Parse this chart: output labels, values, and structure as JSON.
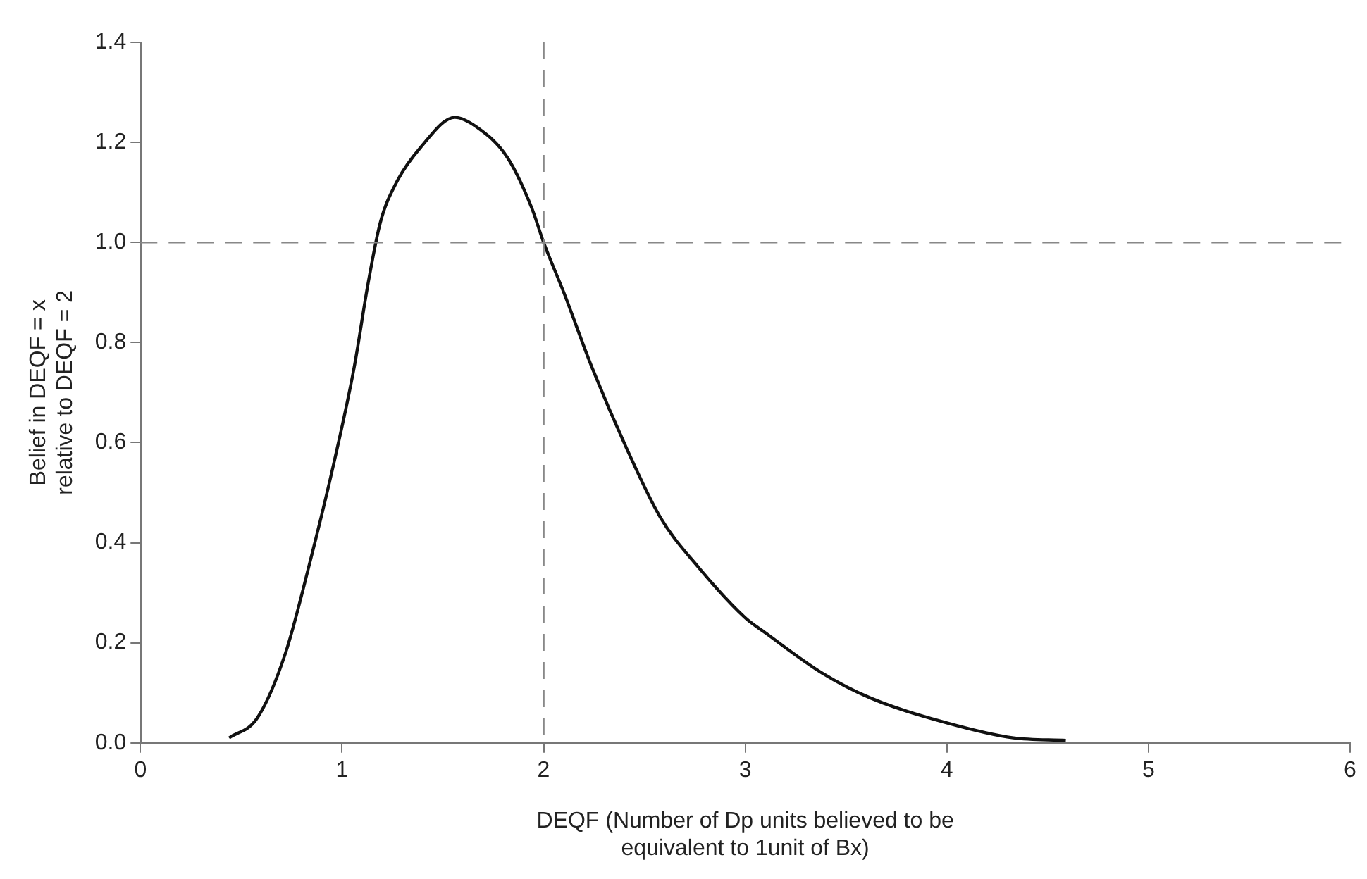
{
  "chart_data": {
    "type": "line",
    "xlabel": "DEQF (Number of Dp units believed to be\nequivalent to 1unit of Bx)",
    "ylabel": "Belief in DEQF = x\nrelative to DEQF = 2",
    "xlim": [
      0,
      6
    ],
    "xticks": [
      0,
      1,
      2,
      3,
      4,
      5,
      6
    ],
    "ylim": [
      0,
      1.4
    ],
    "yticks": [
      {
        "value": 0,
        "label": "0.0"
      },
      {
        "value": 0.2,
        "label": "0.2"
      },
      {
        "value": 0.4,
        "label": "0.4"
      },
      {
        "value": 0.6,
        "label": "0.6"
      },
      {
        "value": 0.8,
        "label": "0.8"
      },
      {
        "value": 1,
        "label": "1.0"
      },
      {
        "value": 1.2,
        "label": "1.2"
      },
      {
        "value": 1.4,
        "label": "1.4"
      }
    ],
    "marker": "none",
    "line_style": "solid",
    "series": [
      {
        "color": "#111111",
        "x": [
          0.44,
          0.58,
          0.72,
          0.84,
          0.96,
          1.06,
          1.13,
          1.19,
          1.27,
          1.39,
          1.56,
          1.67,
          1.82,
          1.94,
          2.0,
          2.1,
          2.24,
          2.41,
          2.58,
          2.77,
          3.0,
          3.1,
          3.38,
          3.62,
          4.0,
          4.33,
          4.59
        ],
        "values": [
          0.01,
          0.05,
          0.18,
          0.36,
          0.56,
          0.75,
          0.92,
          1.04,
          1.12,
          1.19,
          1.25,
          1.23,
          1.17,
          1.07,
          1.0,
          0.9,
          0.75,
          0.59,
          0.45,
          0.35,
          0.25,
          0.22,
          0.14,
          0.09,
          0.04,
          0.01,
          0.005
        ]
      }
    ],
    "ref_lines": [
      {
        "axis": "x",
        "value": 2,
        "color": "#888888",
        "line_style": "dashed"
      },
      {
        "axis": "y",
        "value": 1,
        "color": "#888888",
        "line_style": "dashed"
      }
    ]
  }
}
